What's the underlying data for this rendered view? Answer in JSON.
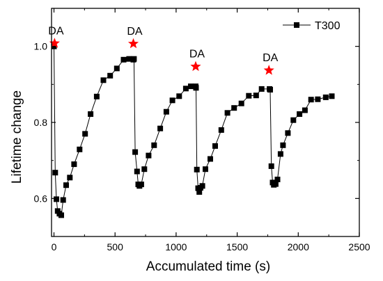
{
  "chart_data": {
    "type": "line",
    "title": "",
    "xlabel": "Accumulated time (s)",
    "ylabel": "Lifetime change",
    "xlim": [
      -20,
      2500
    ],
    "ylim": [
      0.5,
      1.1
    ],
    "x_ticks": [
      0,
      500,
      1000,
      1500,
      2000,
      2500
    ],
    "x_tick_labels": [
      "0",
      "500",
      "1000",
      "1500",
      "2000",
      "2500"
    ],
    "y_ticks": [
      0.6,
      0.8,
      1.0
    ],
    "y_tick_labels": [
      "0.6",
      "0.8",
      "1.0"
    ],
    "grid": false,
    "legend_position": "top-right",
    "series": [
      {
        "name": "T300",
        "color": "#000000",
        "marker": "square",
        "x": [
          0,
          10,
          20,
          30,
          45,
          60,
          75,
          100,
          130,
          165,
          210,
          255,
          300,
          350,
          405,
          460,
          515,
          570,
          615,
          650,
          655,
          665,
          680,
          690,
          700,
          715,
          740,
          775,
          820,
          870,
          920,
          970,
          1025,
          1080,
          1120,
          1160,
          1163,
          1170,
          1180,
          1190,
          1200,
          1215,
          1240,
          1280,
          1320,
          1370,
          1420,
          1475,
          1535,
          1595,
          1655,
          1700,
          1765,
          1770,
          1780,
          1790,
          1800,
          1815,
          1830,
          1855,
          1875,
          1915,
          1960,
          2010,
          2055,
          2105,
          2160,
          2225,
          2275
        ],
        "y": [
          1.0,
          0.668,
          0.598,
          0.567,
          0.56,
          0.556,
          0.596,
          0.635,
          0.655,
          0.69,
          0.729,
          0.77,
          0.822,
          0.868,
          0.911,
          0.923,
          0.942,
          0.965,
          0.967,
          0.965,
          0.967,
          0.722,
          0.671,
          0.637,
          0.633,
          0.637,
          0.677,
          0.713,
          0.74,
          0.784,
          0.828,
          0.858,
          0.869,
          0.889,
          0.895,
          0.895,
          0.891,
          0.676,
          0.627,
          0.617,
          0.628,
          0.633,
          0.677,
          0.704,
          0.738,
          0.78,
          0.825,
          0.838,
          0.85,
          0.87,
          0.871,
          0.888,
          0.888,
          0.886,
          0.685,
          0.642,
          0.636,
          0.638,
          0.65,
          0.717,
          0.74,
          0.772,
          0.806,
          0.822,
          0.832,
          0.86,
          0.861,
          0.866,
          0.869
        ]
      }
    ],
    "annotations": [
      {
        "label": "DA",
        "x": 5,
        "y": 1.008,
        "marker": "star",
        "color": "#ff0000"
      },
      {
        "label": "DA",
        "x": 650,
        "y": 1.007,
        "marker": "star",
        "color": "#ff0000"
      },
      {
        "label": "DA",
        "x": 1160,
        "y": 0.947,
        "marker": "star",
        "color": "#ff0000"
      },
      {
        "label": "DA",
        "x": 1760,
        "y": 0.937,
        "marker": "star",
        "color": "#ff0000"
      }
    ]
  }
}
